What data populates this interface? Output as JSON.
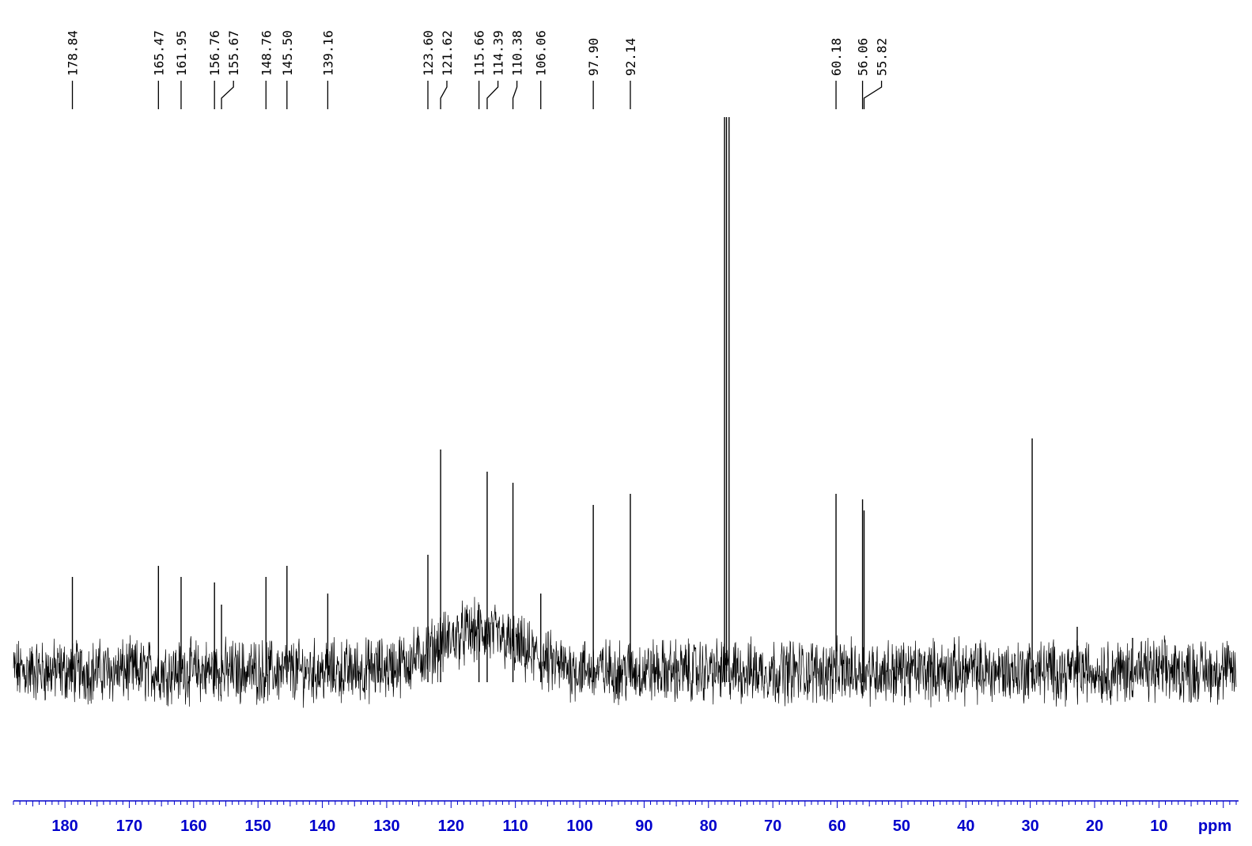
{
  "chart_data": {
    "type": "line",
    "x_unit": "ppm",
    "x_axis_reversed": true,
    "xlim": [
      188,
      -2
    ],
    "x_ticks": [
      180,
      170,
      160,
      150,
      140,
      130,
      120,
      110,
      100,
      90,
      80,
      70,
      60,
      50,
      40,
      30,
      20,
      10
    ],
    "x_tick_labels": [
      "180",
      "170",
      "160",
      "150",
      "140",
      "130",
      "120",
      "110",
      "100",
      "90",
      "80",
      "70",
      "60",
      "50",
      "40",
      "30",
      "20",
      "10"
    ],
    "x_minor_tick_step": 1,
    "peak_labels": [
      "178.84",
      "165.47",
      "161.95",
      "156.76",
      "155.67",
      "148.76",
      "145.50",
      "139.16",
      "123.60",
      "121.62",
      "115.66",
      "114.39",
      "110.38",
      "106.06",
      "97.90",
      "92.14",
      "60.18",
      "56.06",
      "55.82"
    ],
    "peaks": [
      {
        "x": 178.84,
        "y": 0.17
      },
      {
        "x": 165.47,
        "y": 0.19
      },
      {
        "x": 161.95,
        "y": 0.17
      },
      {
        "x": 156.76,
        "y": 0.16
      },
      {
        "x": 155.67,
        "y": 0.12
      },
      {
        "x": 148.76,
        "y": 0.17
      },
      {
        "x": 145.5,
        "y": 0.19
      },
      {
        "x": 139.16,
        "y": 0.14
      },
      {
        "x": 123.6,
        "y": 0.21
      },
      {
        "x": 121.62,
        "y": 0.4
      },
      {
        "x": 115.66,
        "y": 0.12
      },
      {
        "x": 114.39,
        "y": 0.36
      },
      {
        "x": 110.38,
        "y": 0.34
      },
      {
        "x": 106.06,
        "y": 0.14
      },
      {
        "x": 97.9,
        "y": 0.3
      },
      {
        "x": 92.14,
        "y": 0.32
      },
      {
        "x": 77.5,
        "y": 1.0
      },
      {
        "x": 77.2,
        "y": 1.0
      },
      {
        "x": 76.8,
        "y": 1.0
      },
      {
        "x": 60.18,
        "y": 0.32
      },
      {
        "x": 56.06,
        "y": 0.31
      },
      {
        "x": 55.82,
        "y": 0.29
      },
      {
        "x": 29.7,
        "y": 0.42
      },
      {
        "x": 22.7,
        "y": 0.08
      },
      {
        "x": 14.1,
        "y": 0.06
      }
    ],
    "baseline_hump": {
      "center": 116,
      "width": 9,
      "height": 0.07
    },
    "noise_amplitude": 0.045,
    "line_color": "#000000",
    "axis_color": "#0000cc"
  }
}
